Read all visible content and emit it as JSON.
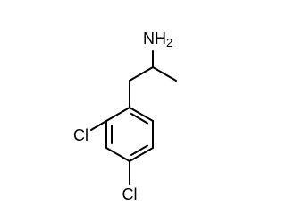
{
  "atoms": [
    {
      "label": "NH",
      "subscript": "2"
    },
    {
      "label": "Cl"
    },
    {
      "label": "Cl"
    }
  ]
}
